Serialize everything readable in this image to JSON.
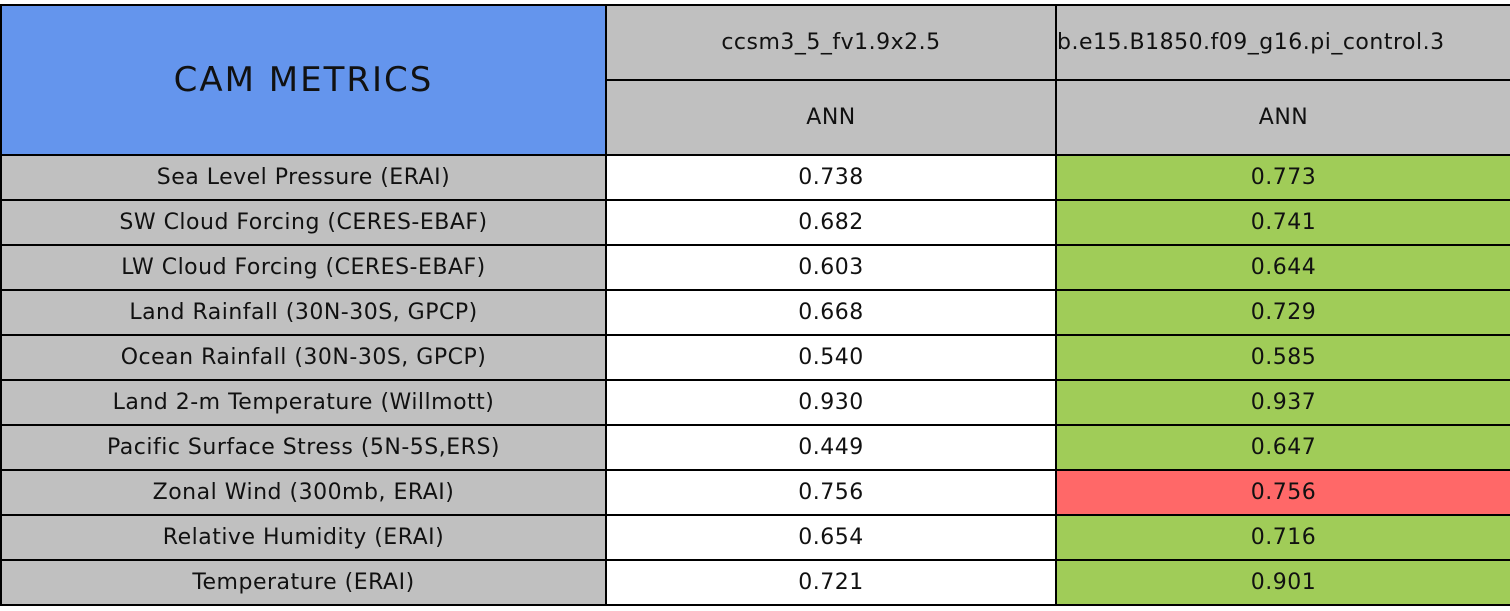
{
  "header": {
    "title": "CAM METRICS",
    "models": [
      "ccsm3_5_fv1.9x2.5",
      "b.e15.B1850.f09_g16.pi_control.3"
    ],
    "seasons": [
      "ANN",
      "ANN"
    ]
  },
  "table": {
    "rows": [
      {
        "metric": "Sea Level Pressure (ERAI)",
        "values": [
          "0.738",
          "0.773"
        ],
        "colors": [
          "#ffffff",
          "#a0cc58"
        ]
      },
      {
        "metric": "SW Cloud Forcing (CERES-EBAF)",
        "values": [
          "0.682",
          "0.741"
        ],
        "colors": [
          "#ffffff",
          "#a0cc58"
        ]
      },
      {
        "metric": "LW Cloud Forcing (CERES-EBAF)",
        "values": [
          "0.603",
          "0.644"
        ],
        "colors": [
          "#ffffff",
          "#a0cc58"
        ]
      },
      {
        "metric": "Land Rainfall (30N-30S, GPCP)",
        "values": [
          "0.668",
          "0.729"
        ],
        "colors": [
          "#ffffff",
          "#a0cc58"
        ]
      },
      {
        "metric": "Ocean Rainfall (30N-30S, GPCP)",
        "values": [
          "0.540",
          "0.585"
        ],
        "colors": [
          "#ffffff",
          "#a0cc58"
        ]
      },
      {
        "metric": "Land 2-m Temperature (Willmott)",
        "values": [
          "0.930",
          "0.937"
        ],
        "colors": [
          "#ffffff",
          "#a0cc58"
        ]
      },
      {
        "metric": "Pacific Surface Stress (5N-5S,ERS)",
        "values": [
          "0.449",
          "0.647"
        ],
        "colors": [
          "#ffffff",
          "#a0cc58"
        ]
      },
      {
        "metric": "Zonal Wind (300mb, ERAI)",
        "values": [
          "0.756",
          "0.756"
        ],
        "colors": [
          "#ffffff",
          "#ff6868"
        ]
      },
      {
        "metric": "Relative Humidity (ERAI)",
        "values": [
          "0.654",
          "0.716"
        ],
        "colors": [
          "#ffffff",
          "#a0cc58"
        ]
      },
      {
        "metric": "Temperature (ERAI)",
        "values": [
          "0.721",
          "0.901"
        ],
        "colors": [
          "#ffffff",
          "#a0cc58"
        ]
      }
    ]
  }
}
